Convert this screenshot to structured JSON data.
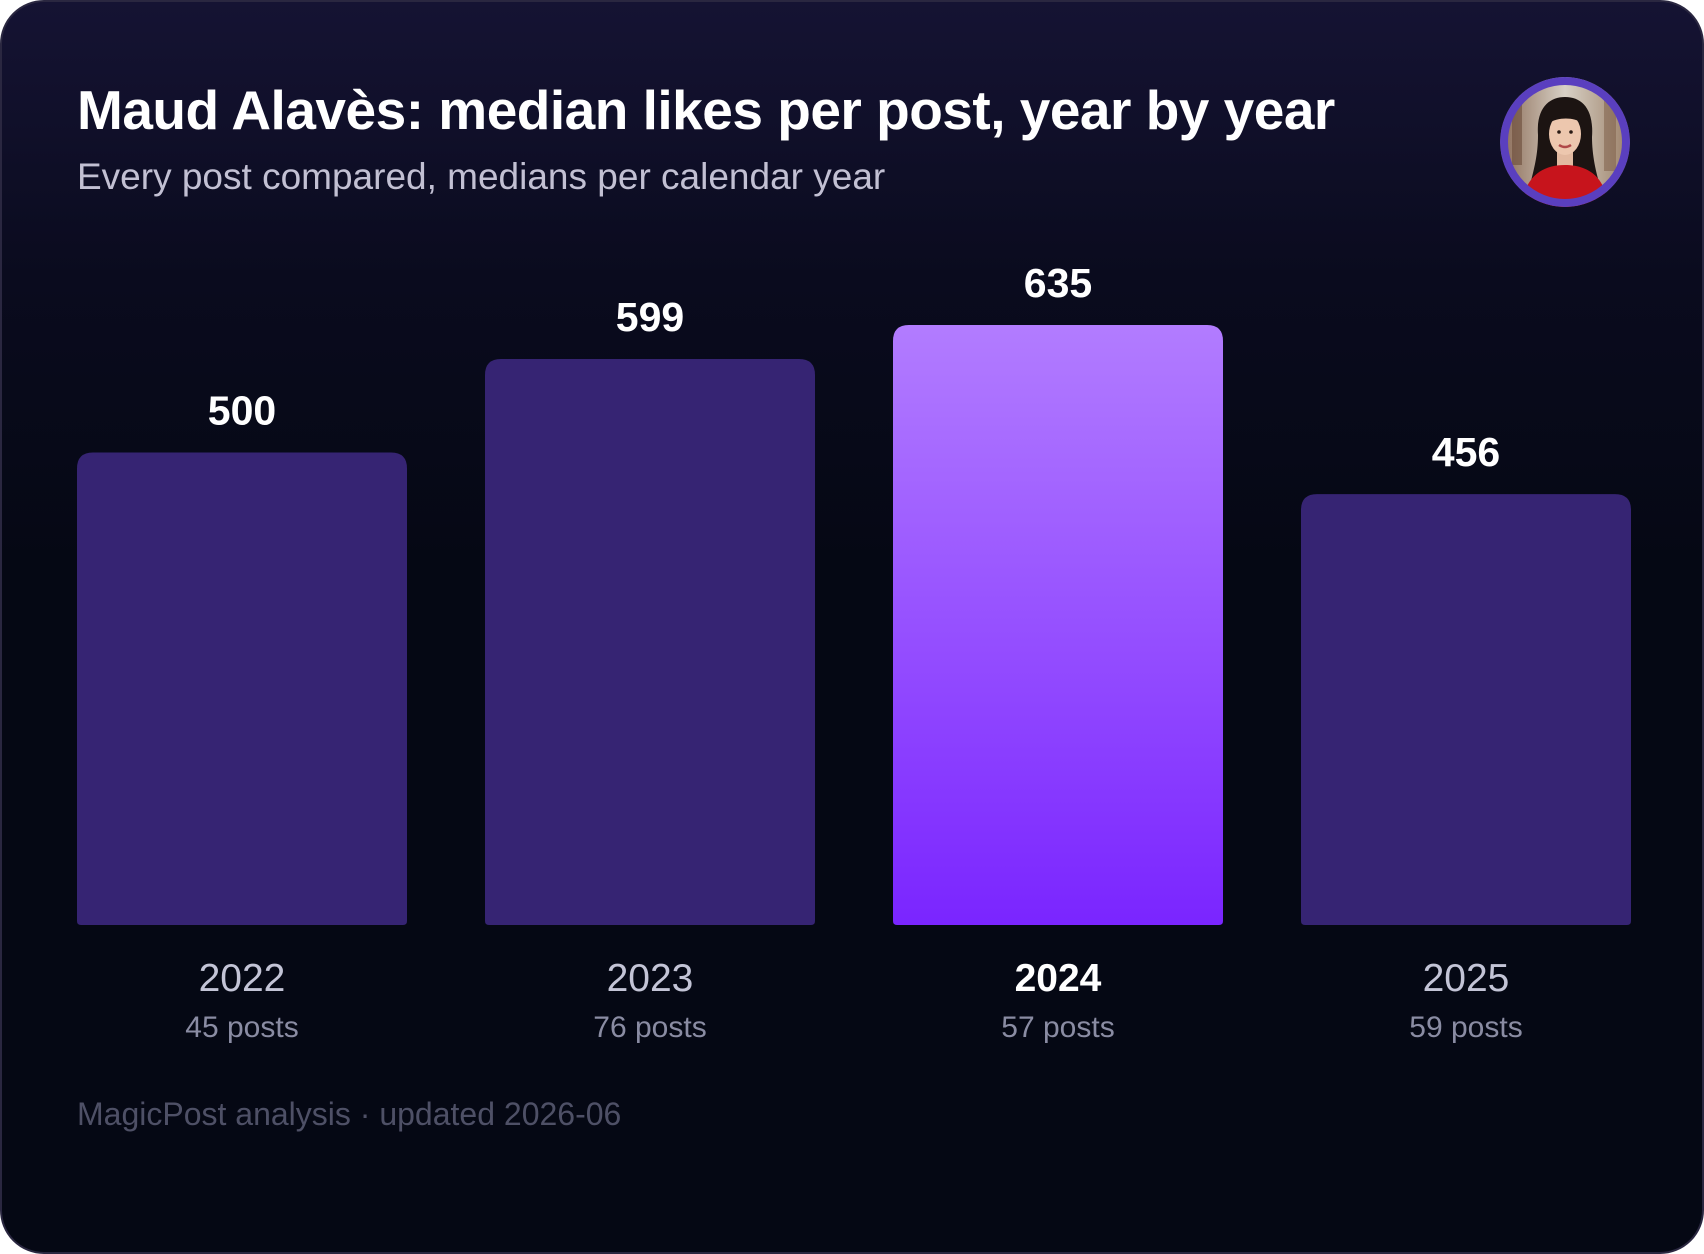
{
  "header": {
    "title": "Maud Alavès: median likes per post, year by year",
    "subtitle": "Every post compared, medians per calendar year"
  },
  "avatar": {
    "icon": "profile-photo",
    "ring_color": "#5a3fbf"
  },
  "footer": {
    "text": "MagicPost analysis · updated 2026-06"
  },
  "colors": {
    "bar": "#362473",
    "highlight_top": "#b27cff",
    "highlight_bottom": "#7a25ff",
    "value_label": "#ffffff",
    "category_label": "#c3c4d6",
    "category_highlight": "#ffffff",
    "count_label": "#8a8ca3"
  },
  "chart_data": {
    "type": "bar",
    "categories": [
      "2022",
      "2023",
      "2024",
      "2025"
    ],
    "values": [
      500,
      599,
      635,
      456
    ],
    "value_labels": [
      "500",
      "599",
      "635",
      "456"
    ],
    "sublabels": [
      "45 posts",
      "76 posts",
      "57 posts",
      "59 posts"
    ],
    "highlight": "2024",
    "ylim": [
      0,
      635
    ],
    "grid": false,
    "legend": "none",
    "title": "Maud Alavès: median likes per post, year by year",
    "xlabel": "",
    "ylabel": ""
  }
}
